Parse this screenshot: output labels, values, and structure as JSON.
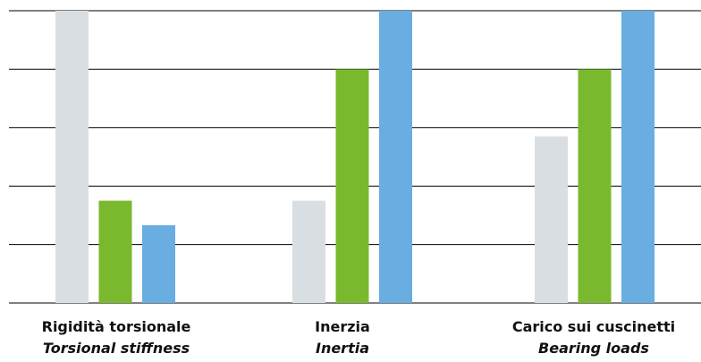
{
  "chart_data": {
    "type": "bar",
    "title": "",
    "xlabel": "",
    "ylabel": "",
    "ylim": [
      0,
      5
    ],
    "grid": true,
    "legend": "none",
    "categories": [
      {
        "line1": "Rigidità torsionale",
        "line2": "Torsional stiffness"
      },
      {
        "line1": "Inerzia",
        "line2": "Inertia"
      },
      {
        "line1": "Carico sui cuscinetti",
        "line2": "Bearing loads"
      }
    ],
    "series": [
      {
        "color": "#d9dee3",
        "values": [
          5.0,
          1.75,
          2.85
        ]
      },
      {
        "color": "#7ab92d",
        "values": [
          1.75,
          4.0,
          4.0
        ]
      },
      {
        "color": "#69ade1",
        "values": [
          1.33,
          5.0,
          5.0
        ]
      }
    ]
  }
}
